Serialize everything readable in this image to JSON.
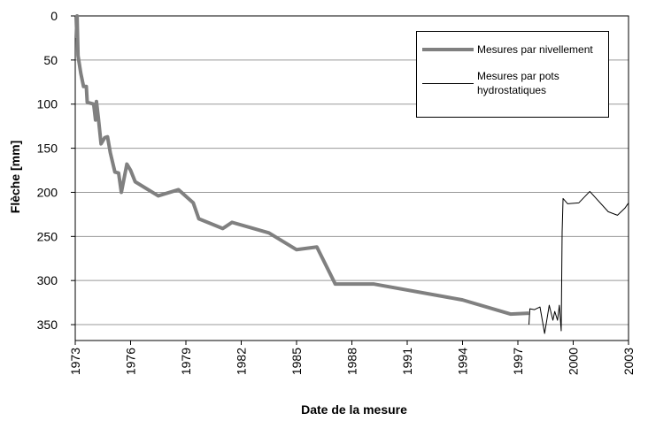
{
  "chart_data": {
    "type": "line",
    "xlabel": "Date de la mesure",
    "ylabel": "Flèche  [mm]",
    "xlim": [
      1973,
      2003
    ],
    "xticks": [
      1973,
      1976,
      1979,
      1982,
      1985,
      1988,
      1991,
      1994,
      1997,
      2000,
      2003
    ],
    "ylim": [
      0,
      368
    ],
    "yticks": [
      0,
      50,
      100,
      150,
      200,
      250,
      300,
      350
    ],
    "y_inverted": true,
    "grid": true,
    "legend": "upper right",
    "series": [
      {
        "name": "Mesures par nivellement",
        "color": "#808080",
        "width": 4,
        "x": [
          1973.05,
          1973.1,
          1973.15,
          1973.3,
          1973.45,
          1973.6,
          1973.65,
          1974.0,
          1974.1,
          1974.15,
          1974.25,
          1974.4,
          1974.6,
          1974.75,
          1974.9,
          1975.15,
          1975.35,
          1975.5,
          1975.8,
          1976.0,
          1976.25,
          1977.5,
          1978.6,
          1979.4,
          1979.7,
          1981.0,
          1981.5,
          1983.5,
          1985.0,
          1986.1,
          1987.1,
          1989.2,
          1994.0,
          1996.6,
          1997.6
        ],
        "values": [
          25,
          0,
          45,
          65,
          80,
          80,
          98,
          100,
          118,
          97,
          115,
          145,
          138,
          137,
          155,
          177,
          178,
          200,
          168,
          175,
          188,
          204,
          197,
          212,
          230,
          241,
          234,
          246,
          265,
          262,
          304,
          304,
          322,
          338,
          337
        ]
      },
      {
        "name": "Mesures par pots hydrostatiques",
        "color": "#000000",
        "width": 1,
        "x": [
          1997.6,
          1997.65,
          1997.9,
          1998.2,
          1998.45,
          1998.7,
          1998.9,
          1999.0,
          1999.15,
          1999.25,
          1999.35,
          1999.4,
          1999.45,
          1999.7,
          2000.3,
          2000.9,
          2001.9,
          2002.4,
          2002.8,
          2003.0
        ],
        "values": [
          350,
          332,
          333,
          330,
          360,
          328,
          345,
          335,
          345,
          328,
          357,
          245,
          207,
          213,
          212,
          199,
          222,
          226,
          218,
          212
        ]
      }
    ]
  }
}
